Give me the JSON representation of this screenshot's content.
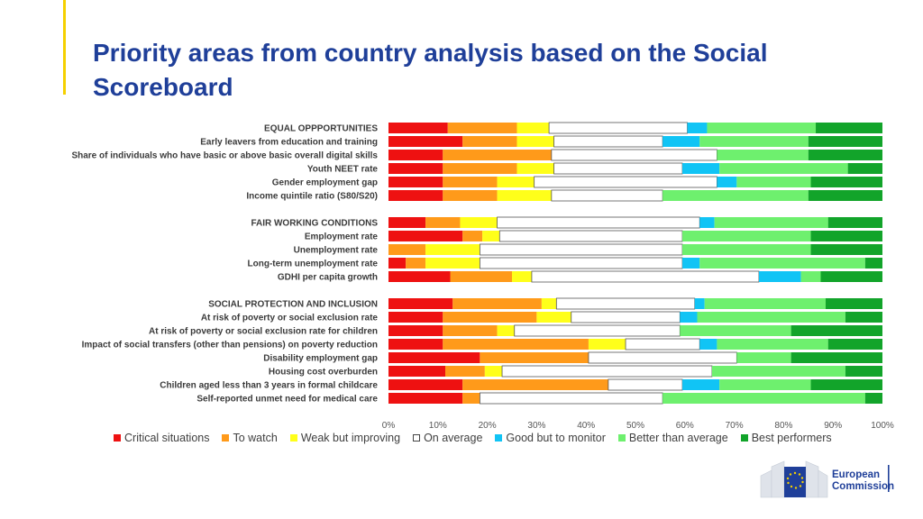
{
  "slide": {
    "title": "Priority areas from country analysis based on the Social Scoreboard",
    "logo_text_line1": "European",
    "logo_text_line2": "Commission"
  },
  "colors": {
    "critical": "#ee1111",
    "watch": "#ff9a1a",
    "weak": "#ffff1a",
    "average": "#ffffff",
    "monitor": "#11c4f5",
    "better": "#6ef06e",
    "best": "#12a42a",
    "title": "#1f3f99"
  },
  "chart_data": {
    "type": "bar",
    "orientation": "horizontal",
    "stacked": "percent",
    "xlim": [
      0,
      100
    ],
    "xticks": [
      "0%",
      "10%",
      "20%",
      "30%",
      "40%",
      "50%",
      "60%",
      "70%",
      "80%",
      "90%",
      "100%"
    ],
    "series_names": [
      "Critical situations",
      "To watch",
      "Weak but improving",
      "On average",
      "Good but to monitor",
      "Better than average",
      "Best performers"
    ],
    "groups": [
      {
        "rows": [
          {
            "label": "EQUAL OPPPORTUNITIES",
            "header": true,
            "values": [
              12,
              14,
              6.5,
              28,
              4,
              22,
              13.5
            ]
          },
          {
            "label": "Early leavers from education and training",
            "values": [
              15,
              11,
              7.5,
              22,
              7.5,
              22,
              15
            ]
          },
          {
            "label": "Share of individuals who have basic or above basic overall digital skills",
            "values": [
              11,
              22,
              0,
              33.5,
              0,
              18.5,
              15
            ]
          },
          {
            "label": "Youth NEET rate",
            "values": [
              11,
              15,
              7.5,
              26,
              7.5,
              26,
              7
            ]
          },
          {
            "label": "Gender employment gap",
            "values": [
              11,
              11,
              7.5,
              37,
              4,
              15,
              14.5
            ]
          },
          {
            "label": "Income quintile ratio (S80/S20)",
            "values": [
              11,
              11,
              11,
              22.5,
              0,
              29.5,
              15
            ]
          }
        ]
      },
      {
        "rows": [
          {
            "label": "FAIR WORKING CONDITIONS",
            "header": true,
            "values": [
              7.5,
              7,
              7.5,
              41,
              3,
              23,
              11
            ]
          },
          {
            "label": "Employment rate",
            "values": [
              15,
              4,
              3.5,
              37,
              0,
              26,
              14.5
            ]
          },
          {
            "label": "Unemployment rate",
            "values": [
              0,
              7.5,
              11,
              41,
              0,
              26,
              14.5
            ]
          },
          {
            "label": "Long-term unemployment rate",
            "values": [
              3.5,
              4,
              11,
              41,
              3.5,
              33.5,
              3.5
            ]
          },
          {
            "label": "GDHI per capita growth",
            "values": [
              12.5,
              12.5,
              4,
              46,
              8.5,
              4,
              12.5
            ]
          }
        ]
      },
      {
        "rows": [
          {
            "label": "SOCIAL PROTECTION AND INCLUSION",
            "header": true,
            "values": [
              13,
              18,
              3,
              28,
              2,
              24.5,
              11.5
            ]
          },
          {
            "label": "At risk of poverty or social exclusion rate",
            "values": [
              11,
              19,
              7,
              22,
              3.5,
              30,
              7.5
            ]
          },
          {
            "label": "At risk of poverty or social exclusion rate for children",
            "values": [
              11,
              11,
              3.5,
              33.5,
              0,
              22.5,
              18.5
            ]
          },
          {
            "label": "Impact of social transfers (other than pensions) on poverty reduction",
            "values": [
              11,
              29.5,
              7.5,
              15,
              3.5,
              22.5,
              11
            ]
          },
          {
            "label": "Disability employment gap",
            "values": [
              18.5,
              22,
              0,
              30,
              0,
              11,
              18.5
            ]
          },
          {
            "label": "Housing cost overburden",
            "values": [
              11.5,
              8,
              3.5,
              42.5,
              0,
              27,
              7.5
            ]
          },
          {
            "label": "Children aged less than 3 years in formal childcare",
            "values": [
              15,
              29.5,
              0,
              15,
              7.5,
              18.5,
              14.5
            ]
          },
          {
            "label": "Self-reported unmet need for medical care",
            "values": [
              15,
              3.5,
              0,
              37,
              0,
              41,
              3.5
            ]
          }
        ]
      }
    ]
  }
}
